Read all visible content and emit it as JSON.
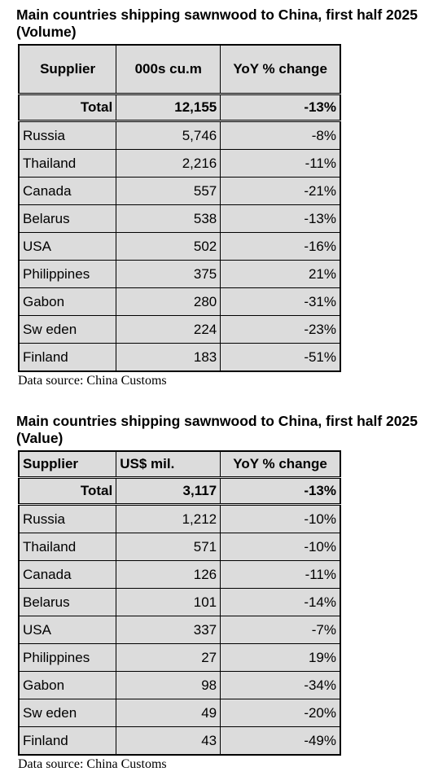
{
  "tables": [
    {
      "title": "Main countries shipping sawnwood to China, first half 2025 (Volume)",
      "columns": [
        "Supplier",
        "000s cu.m",
        "YoY % change"
      ],
      "total": [
        "Total",
        "12,155",
        "-13%"
      ],
      "rows": [
        [
          "Russia",
          "5,746",
          "-8%"
        ],
        [
          "Thailand",
          "2,216",
          "-11%"
        ],
        [
          "Canada",
          "557",
          "-21%"
        ],
        [
          "Belarus",
          "538",
          "-13%"
        ],
        [
          "USA",
          "502",
          "-16%"
        ],
        [
          "Philippines",
          "375",
          "21%"
        ],
        [
          "Gabon",
          "280",
          "-31%"
        ],
        [
          "Sw eden",
          "224",
          "-23%"
        ],
        [
          "Finland",
          "183",
          "-51%"
        ]
      ],
      "source": "Data source: China Customs"
    },
    {
      "title": "Main countries shipping sawnwood to China, first half 2025 (Value)",
      "columns": [
        "Supplier",
        "US$ mil.",
        "YoY % change"
      ],
      "total": [
        "Total",
        "3,117",
        "-13%"
      ],
      "rows": [
        [
          "Russia",
          "1,212",
          "-10%"
        ],
        [
          "Thailand",
          "571",
          "-10%"
        ],
        [
          "Canada",
          "126",
          "-11%"
        ],
        [
          "Belarus",
          "101",
          "-14%"
        ],
        [
          "USA",
          "337",
          "-7%"
        ],
        [
          "Philippines",
          "27",
          "19%"
        ],
        [
          "Gabon",
          "98",
          "-34%"
        ],
        [
          "Sw eden",
          "49",
          "-20%"
        ],
        [
          "Finland",
          "43",
          "-49%"
        ]
      ],
      "source": "Data source: China Customs"
    }
  ]
}
